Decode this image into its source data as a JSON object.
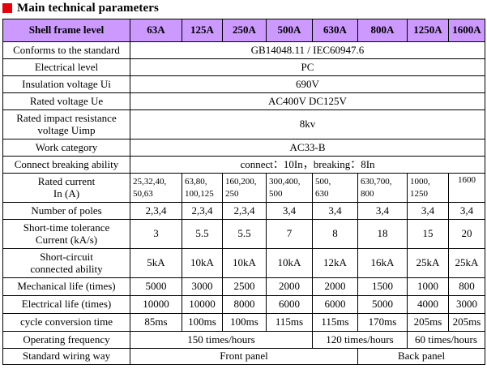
{
  "title": "Main technical parameters",
  "colors": {
    "header_bg": "#cc99ff",
    "title_mark": "#e8000b"
  },
  "header": {
    "label": "Shell frame level",
    "frames": [
      "63A",
      "125A",
      "250A",
      "500A",
      "630A",
      "800A",
      "1250A",
      "1600A"
    ]
  },
  "rows": {
    "standard": {
      "label": "Conforms to the standard",
      "value": "GB14048.11 / IEC60947.6"
    },
    "electrical_level": {
      "label": "Electrical level",
      "value": "PC"
    },
    "insulation": {
      "label": "Insulation voltage   Ui",
      "value": "690V"
    },
    "rated_voltage": {
      "label": "Rated voltage   Ue",
      "value": "AC400V   DC125V"
    },
    "impulse": {
      "label_line1": "Rated impact resistance",
      "label_line2": "voltage   Uimp",
      "value": "8kv"
    },
    "category": {
      "label": "Work category",
      "value": "AC33-B"
    },
    "breaking": {
      "label": "Connect breaking ability",
      "value": "connect：10In，breaking：8In"
    },
    "rated_current": {
      "label_line1": "Rated current",
      "label_line2": "In    (A)",
      "values": [
        [
          "25,32,40,",
          "50,63"
        ],
        [
          "63,80,",
          "100,125"
        ],
        [
          "160,200,",
          "250"
        ],
        [
          "300,400,",
          "500"
        ],
        [
          "500,",
          "630"
        ],
        [
          "630,700,",
          "800"
        ],
        [
          "1000,",
          "1250"
        ],
        [
          "1600",
          ""
        ]
      ]
    },
    "poles": {
      "label": "Number of poles",
      "values": [
        "2,3,4",
        "2,3,4",
        "2,3,4",
        "3,4",
        "3,4",
        "3,4",
        "3,4",
        "3,4"
      ]
    },
    "short_time": {
      "label_line1": "Short-time tolerance",
      "label_line2": "Current    (kA/s)",
      "values": [
        "3",
        "5.5",
        "5.5",
        "7",
        "8",
        "18",
        "15",
        "20"
      ]
    },
    "short_circuit": {
      "label_line1": "Short-circuit",
      "label_line2": "connected ability",
      "values": [
        "5kA",
        "10kA",
        "10kA",
        "10kA",
        "12kA",
        "16kA",
        "25kA",
        "25kA"
      ]
    },
    "mechanical": {
      "label": "Mechanical life (times)",
      "values": [
        "5000",
        "3000",
        "2500",
        "2000",
        "2000",
        "1500",
        "1000",
        "800"
      ]
    },
    "electrical_life": {
      "label": "Electrical life (times)",
      "values": [
        "10000",
        "10000",
        "8000",
        "6000",
        "6000",
        "5000",
        "4000",
        "3000"
      ]
    },
    "cycle": {
      "label": "cycle conversion time",
      "values": [
        "85ms",
        "100ms",
        "100ms",
        "115ms",
        "115ms",
        "170ms",
        "205ms",
        "205ms"
      ]
    },
    "frequency": {
      "label": "Operating frequency",
      "v1": "150 times/hours",
      "v2": "120 times/hours",
      "v3": "60 times/hours"
    },
    "wiring": {
      "label": "Standard wiring way",
      "v1": "Front panel",
      "v2": "Back panel"
    }
  }
}
